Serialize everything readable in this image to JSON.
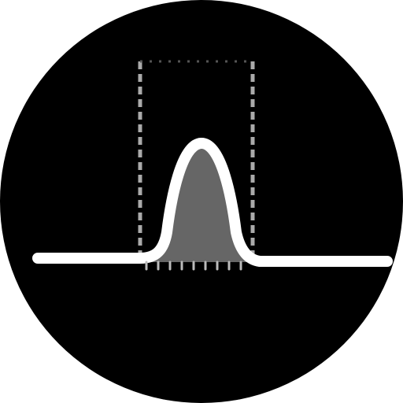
{
  "icon": {
    "name": "gaussian-peak-window-icon",
    "colors": {
      "background": "#ffffff",
      "disc": "#000000",
      "curve": "#ffffff",
      "fill": "#666666",
      "dashed": "#aaaaaa",
      "hatch": "#bbbbbb"
    }
  }
}
